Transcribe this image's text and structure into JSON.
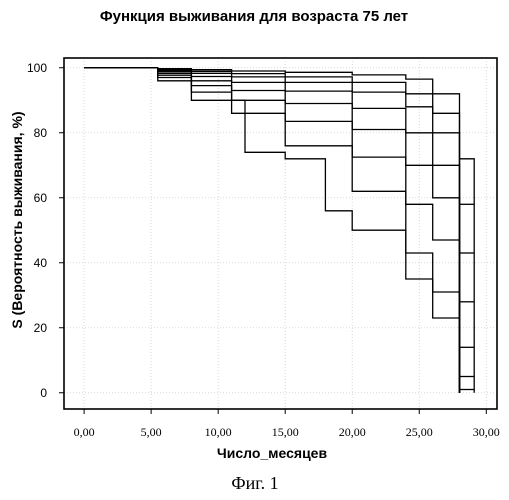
{
  "chart_data": {
    "type": "line",
    "title": "Функция выживания для возраста 75 лет",
    "xlabel": "Число_месяцев",
    "ylabel": "S (Вероятность выживания, %)",
    "caption": "Фиг. 1",
    "xlim": [
      -1.5,
      30.8
    ],
    "ylim": [
      -5,
      103
    ],
    "x_ticks": [
      "0,00",
      "5,00",
      "10,00",
      "15,00",
      "20,00",
      "25,00",
      "30,00"
    ],
    "x_tick_values": [
      0,
      5,
      10,
      15,
      20,
      25,
      30
    ],
    "y_ticks": [
      "0",
      "20",
      "40",
      "60",
      "80",
      "100"
    ],
    "y_tick_values": [
      0,
      20,
      40,
      60,
      80,
      100
    ],
    "grid": true,
    "series": [
      {
        "points": [
          [
            0,
            100
          ],
          [
            4.8,
            100
          ],
          [
            5.5,
            99.7
          ],
          [
            8,
            99.4
          ],
          [
            11,
            99
          ],
          [
            15,
            98.6
          ],
          [
            20,
            97.8
          ],
          [
            24,
            96.5
          ],
          [
            26,
            92
          ],
          [
            28,
            88
          ],
          [
            28,
            0
          ]
        ]
      },
      {
        "points": [
          [
            0,
            100
          ],
          [
            4.8,
            100
          ],
          [
            5.5,
            99.5
          ],
          [
            8,
            98.9
          ],
          [
            11,
            98.2
          ],
          [
            15,
            97.2
          ],
          [
            20,
            95.5
          ],
          [
            24,
            92
          ],
          [
            26,
            86
          ],
          [
            28,
            80
          ],
          [
            28,
            0
          ]
        ]
      },
      {
        "points": [
          [
            0,
            100
          ],
          [
            4.8,
            100
          ],
          [
            5.5,
            99.2
          ],
          [
            8,
            98.3
          ],
          [
            11,
            97.2
          ],
          [
            15,
            95.5
          ],
          [
            20,
            92.5
          ],
          [
            24,
            88
          ],
          [
            26,
            80
          ],
          [
            28,
            72
          ],
          [
            28,
            0
          ]
        ]
      },
      {
        "points": [
          [
            0,
            100
          ],
          [
            4.8,
            100
          ],
          [
            5.5,
            98.8
          ],
          [
            8,
            97.3
          ],
          [
            11,
            95.5
          ],
          [
            15,
            92.8
          ],
          [
            20,
            87.5
          ],
          [
            24,
            80
          ],
          [
            26,
            70
          ],
          [
            28,
            61
          ],
          [
            28,
            0
          ]
        ]
      },
      {
        "points": [
          [
            0,
            100
          ],
          [
            4.8,
            100
          ],
          [
            5.5,
            98.3
          ],
          [
            8,
            96
          ],
          [
            11,
            93
          ],
          [
            15,
            89
          ],
          [
            20,
            81
          ],
          [
            24,
            70
          ],
          [
            26,
            60
          ],
          [
            28,
            50
          ],
          [
            28,
            0
          ]
        ]
      },
      {
        "points": [
          [
            0,
            100
          ],
          [
            4.8,
            100
          ],
          [
            5.5,
            97.7
          ],
          [
            8,
            94.5
          ],
          [
            11,
            90
          ],
          [
            15,
            83.5
          ],
          [
            20,
            72.5
          ],
          [
            24,
            58
          ],
          [
            26,
            47
          ],
          [
            28,
            36
          ],
          [
            28,
            0
          ]
        ]
      },
      {
        "points": [
          [
            0,
            100
          ],
          [
            4.8,
            100
          ],
          [
            5.5,
            97
          ],
          [
            8,
            92.5
          ],
          [
            11,
            86
          ],
          [
            15,
            76
          ],
          [
            20,
            62
          ],
          [
            24,
            43
          ],
          [
            26,
            31
          ],
          [
            28,
            19
          ],
          [
            28,
            0
          ]
        ]
      },
      {
        "points": [
          [
            0,
            100
          ],
          [
            4.8,
            100
          ],
          [
            5.5,
            96
          ],
          [
            8,
            90
          ],
          [
            12,
            74
          ],
          [
            15,
            72
          ],
          [
            18,
            56
          ],
          [
            20,
            50
          ],
          [
            24,
            35
          ],
          [
            26,
            23
          ],
          [
            28,
            19
          ],
          [
            28,
            0
          ]
        ]
      }
    ],
    "tail_series": [
      {
        "points": [
          [
            28,
            72
          ],
          [
            29.1,
            72
          ],
          [
            29.1,
            0
          ]
        ]
      },
      {
        "points": [
          [
            28,
            58
          ],
          [
            29.1,
            58
          ]
        ]
      },
      {
        "points": [
          [
            28,
            43
          ],
          [
            29.1,
            43
          ]
        ]
      },
      {
        "points": [
          [
            28,
            28
          ],
          [
            29.1,
            28
          ]
        ]
      },
      {
        "points": [
          [
            28,
            14
          ],
          [
            29.1,
            14
          ]
        ]
      },
      {
        "points": [
          [
            28,
            5
          ],
          [
            29.1,
            5
          ]
        ]
      },
      {
        "points": [
          [
            28,
            1
          ],
          [
            29.1,
            1
          ]
        ]
      }
    ]
  }
}
